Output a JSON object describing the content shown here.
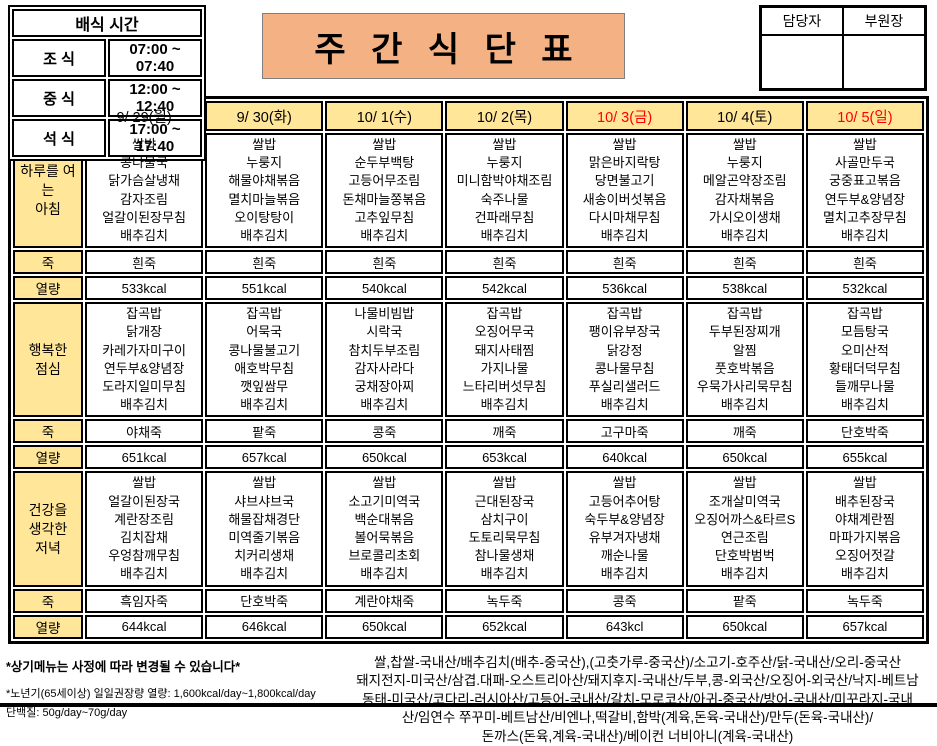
{
  "colors": {
    "header_bg": "#FFE699",
    "title_bg": "#F4B183",
    "holiday_red": "#FF0000"
  },
  "serving_time": {
    "title": "배식  시간",
    "rows": [
      {
        "label": "조 식",
        "time": "07:00 ~ 07:40"
      },
      {
        "label": "중 식",
        "time": "12:00 ~ 12:40"
      },
      {
        "label": "석 식",
        "time": "17:00 ~ 17:40"
      }
    ]
  },
  "title": "주 간 식 단 표",
  "approval": {
    "columns": [
      "담당자",
      "부원장"
    ]
  },
  "table": {
    "days": [
      {
        "label": "9/ 29(월)",
        "red": false
      },
      {
        "label": "9/ 30(화)",
        "red": false
      },
      {
        "label": "10/ 1(수)",
        "red": false
      },
      {
        "label": "10/ 2(목)",
        "red": false
      },
      {
        "label": "10/ 3(금)",
        "red": true
      },
      {
        "label": "10/ 4(토)",
        "red": false
      },
      {
        "label": "10/ 5(일)",
        "red": true
      }
    ],
    "sections": [
      {
        "label": "하루를 여\n는\n아침",
        "menus": [
          [
            "쌀밥",
            "콩나물국",
            "닭가슴살냉채",
            "감자조림",
            "얼갈이된장무침",
            "배추김치"
          ],
          [
            "쌀밥",
            "누룽지",
            "해물야채볶음",
            "멸치마늘볶음",
            "오이탕탕이",
            "배추김치"
          ],
          [
            "쌀밥",
            "순두부백탕",
            "고등어무조림",
            "돈채마늘쫑볶음",
            "고추잎무침",
            "배추김치"
          ],
          [
            "쌀밥",
            "누룽지",
            "미니함박야채조림",
            "숙주나물",
            "건파래무침",
            "배추김치"
          ],
          [
            "쌀밥",
            "맑은바지락탕",
            "당면불고기",
            "새송이버섯볶음",
            "다시마채무침",
            "배추김치"
          ],
          [
            "쌀밥",
            "누룽지",
            "메알곤약장조림",
            "감자채볶음",
            "가시오이생채",
            "배추김치"
          ],
          [
            "쌀밥",
            "사골만두국",
            "궁중표고볶음",
            "연두부&양념장",
            "멸치고추장무침",
            "배추김치"
          ]
        ],
        "porridge_label": "죽",
        "porridges": [
          "흰죽",
          "흰죽",
          "흰죽",
          "흰죽",
          "흰죽",
          "흰죽",
          "흰죽"
        ],
        "calorie_label": "열량",
        "calories": [
          "533kcal",
          "551kcal",
          "540kcal",
          "542kcal",
          "536kcal",
          "538kcal",
          "532kcal"
        ]
      },
      {
        "label": "행복한\n점심",
        "menus": [
          [
            "잡곡밥",
            "닭개장",
            "카레가자미구이",
            "연두부&양념장",
            "도라지일미무침",
            "배추김치"
          ],
          [
            "잡곡밥",
            "어묵국",
            "콩나물불고기",
            "애호박무침",
            "깻잎쌈무",
            "배추김치"
          ],
          [
            "나물비빔밥",
            "시락국",
            "참치두부조림",
            "감자사라다",
            "궁채장아찌",
            "배추김치"
          ],
          [
            "잡곡밥",
            "오징어무국",
            "돼지사태찜",
            "가지나물",
            "느타리버섯무침",
            "배추김치"
          ],
          [
            "잡곡밥",
            "팽이유부장국",
            "닭강정",
            "콩나물무침",
            "푸실리샐러드",
            "배추김치"
          ],
          [
            "잡곡밥",
            "두부된장찌개",
            "알찜",
            "풋호박볶음",
            "우묵가사리묵무침",
            "배추김치"
          ],
          [
            "잡곡밥",
            "모듬탕국",
            "오미산적",
            "황태더덕무침",
            "들깨무나물",
            "배추김치"
          ]
        ],
        "porridge_label": "죽",
        "porridges": [
          "야채죽",
          "팥죽",
          "콩죽",
          "깨죽",
          "고구마죽",
          "깨죽",
          "단호박죽"
        ],
        "calorie_label": "열량",
        "calories": [
          "651kcal",
          "657kcal",
          "650kcal",
          "653kcal",
          "640kcal",
          "650kcal",
          "655kcal"
        ]
      },
      {
        "label": "건강을\n생각한\n저녁",
        "menus": [
          [
            "쌀밥",
            "얼갈이된장국",
            "계란장조림",
            "김치잡채",
            "우엉참깨무침",
            "배추김치"
          ],
          [
            "쌀밥",
            "샤브샤브국",
            "해물잡채경단",
            "미역줄기볶음",
            "치커리생채",
            "배추김치"
          ],
          [
            "쌀밥",
            "소고기미역국",
            "백순대볶음",
            "볼어묵볶음",
            "브로콜리초회",
            "배추김치"
          ],
          [
            "쌀밥",
            "근대된장국",
            "삼치구이",
            "도토리묵무침",
            "참나물생채",
            "배추김치"
          ],
          [
            "쌀밥",
            "고등어추어탕",
            "숙두부&양념장",
            "유부겨자냉채",
            "깨순나물",
            "배추김치"
          ],
          [
            "쌀밥",
            "조개살미역국",
            "오징어까스&타르S",
            "연근조림",
            "단호박범벅",
            "배추김치"
          ],
          [
            "쌀밥",
            "배추된장국",
            "야채계란찜",
            "마파가지볶음",
            "오징어젓갈",
            "배추김치"
          ]
        ],
        "porridge_label": "죽",
        "porridges": [
          "흑임자죽",
          "단호박죽",
          "계란야채죽",
          "녹두죽",
          "콩죽",
          "팥죽",
          "녹두죽"
        ],
        "calorie_label": "열량",
        "calories": [
          "644kcal",
          "646kcal",
          "650kcal",
          "652kcal",
          "643kcl",
          "650kcal",
          "657kcal"
        ]
      }
    ]
  },
  "footnotes": {
    "left1": "*상기메뉴는 사정에 따라 변경될 수 있습니다*",
    "left2": "*노년기(65세이상) 일일권장량 열량: 1,600kcal/day~1,800kcal/day",
    "left3": "단백질: 50g/day~70g/day",
    "right_lines": [
      "쌀,찹쌀-국내산/배추김치(배추-중국산),(고춧가루-중국산)/소고기-호주산/닭-국내산/오리-중국산",
      "돼지전지-미국산/삼겹.대패-오스트리아산/돼지후지-국내산/두부,콩-외국산/오징어-외국산/낙지-베트남",
      "동태-미국산/코다리-러시아산/고등어-국내산/갈치-모로코산/아귀-중국산/방어-국내산/미꾸라지-국내",
      "산/임연수 쭈꾸미-베트남산/비엔나,떡갈비,함박(계육,돈육-국내산)/만두(돈육-국내산)/",
      "돈까스(돈육,계육-국내산)/베이컨 너비아니(계육-국내산)"
    ]
  }
}
